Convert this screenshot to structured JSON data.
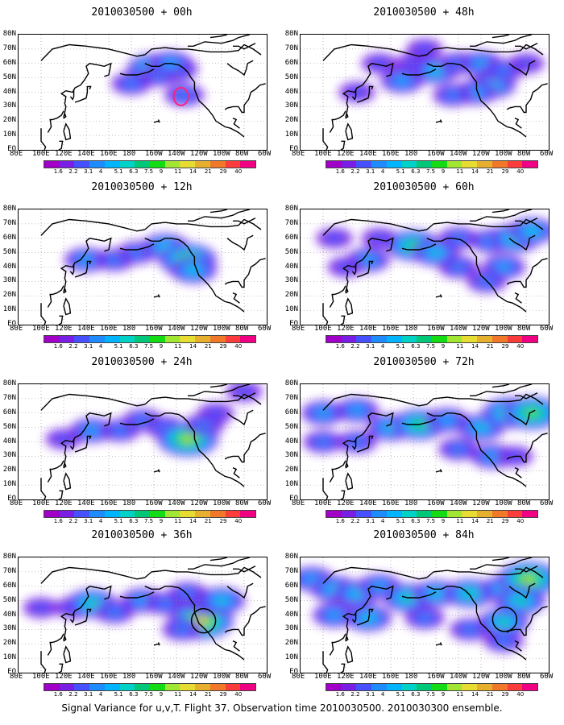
{
  "caption": "Signal Variance for u,v,T. Flight 37. Observation time 2010030500. 2010030300 ensemble.",
  "colorbar": {
    "labels": [
      "1.6",
      "2.2",
      "3.1",
      "4",
      "5.1",
      "6.3",
      "7.5",
      "9",
      "11",
      "14",
      "21",
      "29",
      "40"
    ],
    "colors": [
      "#a000c8",
      "#7a1ee6",
      "#4650ff",
      "#1e8cff",
      "#00b4ff",
      "#00d2c8",
      "#00c878",
      "#14dc14",
      "#a0e632",
      "#e6dc32",
      "#e6af2d",
      "#f07828",
      "#fa3c3c",
      "#f00082"
    ]
  },
  "axes": {
    "lon_labels": [
      "80E",
      "100E",
      "120E",
      "140E",
      "160E",
      "180",
      "160W",
      "140W",
      "120W",
      "100W",
      "80W",
      "60W"
    ],
    "lat_labels": [
      "80N",
      "70N",
      "60N",
      "50N",
      "40N",
      "30N",
      "20N",
      "10N",
      "EQ"
    ]
  },
  "chart_data": [
    {
      "type": "heatmap",
      "title": "2010030500 + 00h",
      "variable": "signal variance (u,v,T)",
      "zlevels": [
        1.6,
        2.2,
        3.1,
        4,
        5.1,
        6.3,
        7.5,
        9,
        11,
        14,
        21,
        29,
        40
      ],
      "blobs": [
        {
          "lon": -160,
          "lat": 56,
          "value": 7
        },
        {
          "lon": -142,
          "lat": 56,
          "value": 5
        },
        {
          "lon": -180,
          "lat": 46,
          "value": 3
        },
        {
          "lon": -155,
          "lat": 52,
          "value": 3
        },
        {
          "lon": -133,
          "lat": 38,
          "value": 3
        },
        {
          "lon": -145,
          "lat": 60,
          "value": 4
        }
      ],
      "markers": [
        {
          "lon": -136,
          "lat": 37,
          "shape": "ellipse",
          "color": "#ff2080"
        }
      ]
    },
    {
      "type": "heatmap",
      "title": "2010030500 + 48h",
      "variable": "signal variance (u,v,T)",
      "blobs": [
        {
          "lon": 150,
          "lat": 60,
          "value": 2
        },
        {
          "lon": 180,
          "lat": 60,
          "value": 2
        },
        {
          "lon": -160,
          "lat": 55,
          "value": 5
        },
        {
          "lon": -140,
          "lat": 60,
          "value": 3
        },
        {
          "lon": -120,
          "lat": 60,
          "value": 4
        },
        {
          "lon": -110,
          "lat": 45,
          "value": 5
        },
        {
          "lon": -125,
          "lat": 40,
          "value": 4
        },
        {
          "lon": -100,
          "lat": 55,
          "value": 3
        },
        {
          "lon": -80,
          "lat": 60,
          "value": 2
        },
        {
          "lon": 170,
          "lat": 48,
          "value": 4
        },
        {
          "lon": 130,
          "lat": 40,
          "value": 2
        },
        {
          "lon": -145,
          "lat": 38,
          "value": 3
        },
        {
          "lon": -170,
          "lat": 70,
          "value": 2
        }
      ],
      "markers": []
    },
    {
      "type": "heatmap",
      "title": "2010030500 + 12h",
      "variable": "signal variance (u,v,T)",
      "blobs": [
        {
          "lon": 140,
          "lat": 45,
          "value": 4
        },
        {
          "lon": 165,
          "lat": 45,
          "value": 3
        },
        {
          "lon": -175,
          "lat": 50,
          "value": 3
        },
        {
          "lon": -150,
          "lat": 54,
          "value": 5
        },
        {
          "lon": -130,
          "lat": 45,
          "value": 8
        },
        {
          "lon": -125,
          "lat": 38,
          "value": 5
        }
      ],
      "markers": []
    },
    {
      "type": "heatmap",
      "title": "2010030500 + 60h",
      "variable": "signal variance (u,v,T)",
      "blobs": [
        {
          "lon": 110,
          "lat": 60,
          "value": 2
        },
        {
          "lon": 150,
          "lat": 60,
          "value": 2
        },
        {
          "lon": -180,
          "lat": 55,
          "value": 7
        },
        {
          "lon": -160,
          "lat": 50,
          "value": 5
        },
        {
          "lon": -140,
          "lat": 60,
          "value": 3
        },
        {
          "lon": -110,
          "lat": 58,
          "value": 4
        },
        {
          "lon": -90,
          "lat": 60,
          "value": 6
        },
        {
          "lon": -75,
          "lat": 65,
          "value": 5
        },
        {
          "lon": 140,
          "lat": 45,
          "value": 4
        },
        {
          "lon": 120,
          "lat": 40,
          "value": 2
        },
        {
          "lon": -140,
          "lat": 40,
          "value": 3
        },
        {
          "lon": -100,
          "lat": 40,
          "value": 4
        },
        {
          "lon": -115,
          "lat": 30,
          "value": 3
        }
      ],
      "markers": []
    },
    {
      "type": "heatmap",
      "title": "2010030500 + 24h",
      "variable": "signal variance (u,v,T)",
      "blobs": [
        {
          "lon": 120,
          "lat": 42,
          "value": 2
        },
        {
          "lon": 145,
          "lat": 48,
          "value": 4
        },
        {
          "lon": 170,
          "lat": 48,
          "value": 3
        },
        {
          "lon": -170,
          "lat": 55,
          "value": 3
        },
        {
          "lon": -150,
          "lat": 50,
          "value": 3
        },
        {
          "lon": -130,
          "lat": 42,
          "value": 9
        },
        {
          "lon": -115,
          "lat": 52,
          "value": 3
        },
        {
          "lon": -105,
          "lat": 60,
          "value": 2
        },
        {
          "lon": -80,
          "lat": 75,
          "value": 2
        }
      ],
      "markers": []
    },
    {
      "type": "heatmap",
      "title": "2010030500 + 72h",
      "variable": "signal variance (u,v,T)",
      "blobs": [
        {
          "lon": 100,
          "lat": 60,
          "value": 4
        },
        {
          "lon": 130,
          "lat": 62,
          "value": 4
        },
        {
          "lon": 160,
          "lat": 50,
          "value": 5
        },
        {
          "lon": -175,
          "lat": 52,
          "value": 7
        },
        {
          "lon": -150,
          "lat": 55,
          "value": 4
        },
        {
          "lon": -120,
          "lat": 50,
          "value": 5
        },
        {
          "lon": -95,
          "lat": 60,
          "value": 7
        },
        {
          "lon": -75,
          "lat": 60,
          "value": 8
        },
        {
          "lon": 130,
          "lat": 40,
          "value": 3
        },
        {
          "lon": 100,
          "lat": 40,
          "value": 3
        },
        {
          "lon": -140,
          "lat": 35,
          "value": 3
        },
        {
          "lon": -110,
          "lat": 30,
          "value": 4
        },
        {
          "lon": -90,
          "lat": 30,
          "value": 2
        }
      ],
      "markers": []
    },
    {
      "type": "heatmap",
      "title": "2010030500 + 36h",
      "variable": "signal variance (u,v,T)",
      "blobs": [
        {
          "lon": 100,
          "lat": 45,
          "value": 2
        },
        {
          "lon": 130,
          "lat": 45,
          "value": 3
        },
        {
          "lon": 145,
          "lat": 48,
          "value": 6
        },
        {
          "lon": 165,
          "lat": 42,
          "value": 3
        },
        {
          "lon": -170,
          "lat": 50,
          "value": 4
        },
        {
          "lon": -150,
          "lat": 48,
          "value": 3
        },
        {
          "lon": -130,
          "lat": 55,
          "value": 3
        },
        {
          "lon": -118,
          "lat": 36,
          "value": 10
        },
        {
          "lon": -112,
          "lat": 48,
          "value": 4
        },
        {
          "lon": -100,
          "lat": 50,
          "value": 5
        },
        {
          "lon": -135,
          "lat": 30,
          "value": 3
        }
      ],
      "markers": [
        {
          "lon": -116,
          "lat": 36,
          "shape": "circle",
          "color": "#000000"
        }
      ]
    },
    {
      "type": "heatmap",
      "title": "2010030500 + 84h",
      "variable": "signal variance (u,v,T)",
      "blobs": [
        {
          "lon": 90,
          "lat": 65,
          "value": 4
        },
        {
          "lon": 110,
          "lat": 58,
          "value": 5
        },
        {
          "lon": 130,
          "lat": 55,
          "value": 5
        },
        {
          "lon": 150,
          "lat": 60,
          "value": 4
        },
        {
          "lon": 175,
          "lat": 52,
          "value": 6
        },
        {
          "lon": -160,
          "lat": 55,
          "value": 5
        },
        {
          "lon": -130,
          "lat": 55,
          "value": 6
        },
        {
          "lon": -100,
          "lat": 58,
          "value": 5
        },
        {
          "lon": -78,
          "lat": 65,
          "value": 9
        },
        {
          "lon": -85,
          "lat": 50,
          "value": 6
        },
        {
          "lon": -100,
          "lat": 35,
          "value": 6
        },
        {
          "lon": 110,
          "lat": 40,
          "value": 4
        },
        {
          "lon": 140,
          "lat": 38,
          "value": 5
        },
        {
          "lon": -170,
          "lat": 38,
          "value": 3
        },
        {
          "lon": -130,
          "lat": 30,
          "value": 3
        },
        {
          "lon": -100,
          "lat": 22,
          "value": 3
        }
      ],
      "markers": [
        {
          "lon": -99,
          "lat": 37,
          "shape": "circle",
          "color": "#000000"
        }
      ]
    }
  ]
}
